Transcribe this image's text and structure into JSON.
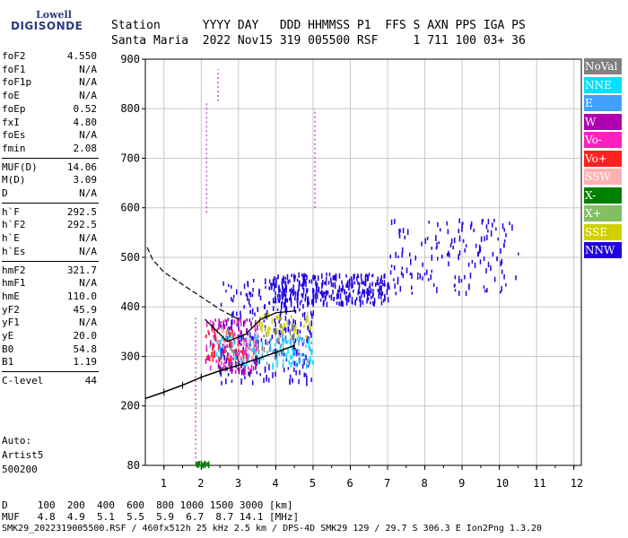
{
  "logo": {
    "line1": "Lowell",
    "line2": "DIGISONDE"
  },
  "header": {
    "line1": "Station      YYYY DAY   DDD HHMMSS P1  FFS S AXN PPS IGA PS",
    "line2": "Santa Maria  2022 Nov15 319 005500 RSF     1 711 100 03+ 36"
  },
  "params": {
    "group1": [
      {
        "label": "foF2",
        "value": "4.550"
      },
      {
        "label": "foF1",
        "value": "N/A"
      },
      {
        "label": "foF1p",
        "value": "N/A"
      },
      {
        "label": "foE",
        "value": "N/A"
      },
      {
        "label": "foEp",
        "value": "0.52"
      },
      {
        "label": "fxI",
        "value": "4.80"
      },
      {
        "label": "foEs",
        "value": "N/A"
      },
      {
        "label": "fmin",
        "value": "2.08"
      }
    ],
    "group2": [
      {
        "label": "MUF(D)",
        "value": "14.06"
      },
      {
        "label": "M(D)",
        "value": "3.09"
      },
      {
        "label": "D",
        "value": "N/A"
      }
    ],
    "group3": [
      {
        "label": "h`F",
        "value": "292.5"
      },
      {
        "label": "h`F2",
        "value": "292.5"
      },
      {
        "label": "h`E",
        "value": "N/A"
      },
      {
        "label": "h`Es",
        "value": "N/A"
      }
    ],
    "group4": [
      {
        "label": "hmF2",
        "value": "321.7"
      },
      {
        "label": "hmF1",
        "value": "N/A"
      },
      {
        "label": "hmE",
        "value": "110.0"
      },
      {
        "label": "yF2",
        "value": "45.9"
      },
      {
        "label": "yF1",
        "value": "N/A"
      },
      {
        "label": "yE",
        "value": "20.0"
      },
      {
        "label": "B0",
        "value": "54.8"
      },
      {
        "label": "B1",
        "value": "1.19"
      }
    ],
    "group5": [
      {
        "label": "C-level",
        "value": "44"
      }
    ]
  },
  "auto": {
    "line1": "Auto:",
    "line2": "Artist5",
    "line3": "500200"
  },
  "legend": [
    {
      "label": "NoVal",
      "color": "#808080"
    },
    {
      "label": "NNE",
      "color": "#00e0ff"
    },
    {
      "label": "E",
      "color": "#40a0ff"
    },
    {
      "label": "W",
      "color": "#b000b0"
    },
    {
      "label": "Vo-",
      "color": "#ff20c0"
    },
    {
      "label": "Vo+",
      "color": "#ff2020"
    },
    {
      "label": "SSW",
      "color": "#ffb0b0"
    },
    {
      "label": "X-",
      "color": "#008000"
    },
    {
      "label": "X+",
      "color": "#80c060"
    },
    {
      "label": "SSE",
      "color": "#d0d000"
    },
    {
      "label": "NNW",
      "color": "#2000e0"
    }
  ],
  "footer": {
    "line1": "D     100  200  400  600  800 1000 1500 3000 [km]",
    "line2": "MUF   4.8  4.9  5.1  5.5  5.9  6.7  8.7 14.1 [MHz]",
    "line3": "SMK29_2022319005500.RSF / 460fx512h 25 kHz 2.5 km / DPS-4D SMK29 129 / 29.7 S 306.3 E Ion2Png 1.3.20"
  },
  "chart_data": {
    "type": "scatter",
    "title": "",
    "xlabel": "",
    "ylabel": "",
    "xlim": [
      0.5,
      12.2
    ],
    "ylim": [
      80,
      900
    ],
    "x_ticks": [
      1,
      2,
      3,
      4,
      5,
      6,
      7,
      8,
      9,
      10,
      11,
      12
    ],
    "y_ticks": [
      80,
      200,
      300,
      400,
      500,
      600,
      700,
      800,
      900
    ],
    "grid": true,
    "legend_position": "right",
    "clusters": [
      {
        "name": "NNW",
        "x": [
          2.5,
          5.0
        ],
        "y": [
          250,
          460
        ],
        "count": 260
      },
      {
        "name": "NNW",
        "x": [
          3.8,
          7.0
        ],
        "y": [
          410,
          470
        ],
        "count": 320
      },
      {
        "name": "NNW",
        "x": [
          7.0,
          10.5
        ],
        "y": [
          430,
          580
        ],
        "count": 150
      },
      {
        "name": "NNE",
        "x": [
          2.2,
          5.0
        ],
        "y": [
          285,
          345
        ],
        "count": 90
      },
      {
        "name": "E",
        "x": [
          2.2,
          5.0
        ],
        "y": [
          285,
          345
        ],
        "count": 60
      },
      {
        "name": "W",
        "x": [
          2.1,
          3.5
        ],
        "y": [
          270,
          380
        ],
        "count": 90
      },
      {
        "name": "Vo-",
        "x": [
          2.1,
          3.5
        ],
        "y": [
          270,
          380
        ],
        "count": 50
      },
      {
        "name": "Vo+",
        "x": [
          2.1,
          3.2
        ],
        "y": [
          290,
          360
        ],
        "count": 40
      },
      {
        "name": "SSE",
        "x": [
          3.5,
          5.0
        ],
        "y": [
          340,
          390
        ],
        "count": 50
      },
      {
        "name": "X-",
        "x": [
          1.8,
          2.2
        ],
        "y": [
          85,
          90
        ],
        "count": 20
      },
      {
        "name": "NoVal",
        "x": [
          2.5,
          4.5
        ],
        "y": [
          300,
          380
        ],
        "count": 40
      },
      {
        "name": "SSW",
        "x": [
          2.4,
          3.5
        ],
        "y": [
          300,
          360
        ],
        "count": 25
      }
    ],
    "trace_lower": {
      "x": [
        0.5,
        1.0,
        1.5,
        2.0,
        2.5,
        3.0,
        3.5,
        4.0,
        4.5
      ],
      "y": [
        215,
        228,
        242,
        258,
        271,
        282,
        295,
        308,
        322
      ]
    },
    "trace_upper_dashed": {
      "x": [
        0.55,
        0.7,
        1.0,
        1.5,
        2.0,
        2.5,
        3.0
      ],
      "y": [
        520,
        495,
        470,
        445,
        420,
        395,
        375
      ]
    },
    "profile_loop": {
      "x": [
        2.1,
        2.7,
        3.2,
        3.6,
        4.0,
        4.55
      ],
      "y": [
        375,
        330,
        345,
        375,
        388,
        392
      ]
    },
    "vertical_streaks": [
      {
        "x": 1.85,
        "y0": 85,
        "y1": 380
      },
      {
        "x": 2.14,
        "y0": 590,
        "y1": 815
      },
      {
        "x": 2.45,
        "y0": 815,
        "y1": 880
      },
      {
        "x": 5.05,
        "y0": 600,
        "y1": 800
      }
    ]
  }
}
